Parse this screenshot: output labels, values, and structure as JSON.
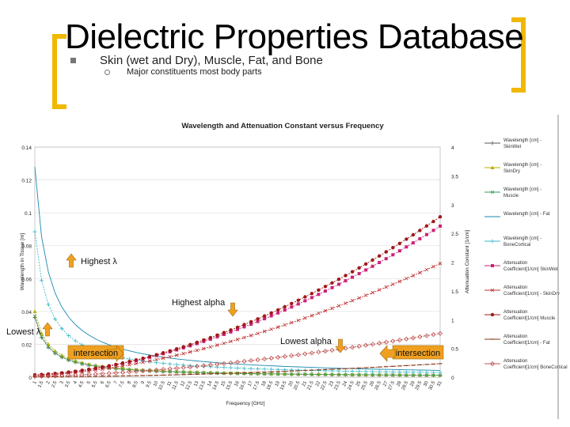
{
  "slide": {
    "title": "Dielectric Properties Database",
    "bullet": "Skin (wet and Dry), Muscle, Fat, and Bone",
    "sub_bullet": "Major constituents most body parts",
    "accent_color": "#f0b800"
  },
  "chart_data": {
    "type": "line",
    "title": "Wavelength and Attenuation Constant versus Frequency",
    "xlabel": "Frequency [GHz]",
    "ylabel_left": "Wavelength in Tissue [m]",
    "ylabel_right": "Attenuation Constant [1/cm]",
    "x": [
      1,
      1.5,
      2,
      2.5,
      3,
      3.5,
      4,
      4.5,
      5,
      5.5,
      6,
      6.5,
      7,
      7.5,
      8,
      8.5,
      9,
      9.5,
      10,
      10.5,
      11,
      11.5,
      12,
      12.5,
      13,
      13.5,
      14,
      14.5,
      15,
      15.5,
      16,
      16.5,
      17,
      17.5,
      18,
      18.5,
      19,
      19.5,
      20,
      20.5,
      21,
      21.5,
      22,
      22.5,
      23,
      23.5,
      24,
      24.5,
      25,
      25.5,
      26,
      26.5,
      27,
      27.5,
      28,
      28.5,
      29,
      29.5,
      30,
      30.5,
      31
    ],
    "xlim": [
      1,
      31
    ],
    "ylim_left": [
      0,
      0.14
    ],
    "yticks_left": [
      "0",
      "0.02",
      "0.04",
      "0.06",
      "0.08",
      "0.1",
      "0.12",
      "0.14"
    ],
    "ylim_right": [
      0,
      4
    ],
    "yticks_right": [
      "0",
      "0.5",
      "1",
      "1.5",
      "2",
      "2.5",
      "3",
      "3.5",
      "4"
    ],
    "grid": true,
    "legend_position": "right",
    "series": [
      {
        "name": "Wavelength [cm] - SkinWet",
        "axis": "left",
        "color": "#555555",
        "marker": "+",
        "a": 0.0363,
        "p": 1,
        "b": 0
      },
      {
        "name": "Wavelength [cm] - SkinDry",
        "axis": "left",
        "color": "#b8b000",
        "marker": "triangle",
        "a": 0.04,
        "p": 1,
        "b": 0
      },
      {
        "name": "Wavelength [cm] - Muscle",
        "axis": "left",
        "color": "#3a9a5a",
        "marker": "x",
        "a": 0.037,
        "p": 1,
        "b": 0
      },
      {
        "name": "Wavelength [cm] - Fat",
        "axis": "left",
        "color": "#1a8ab0",
        "marker": "none",
        "a": 0.128,
        "p": 1,
        "b": 0
      },
      {
        "name": "Wavelength [cm] - BoneCortical",
        "axis": "left",
        "color": "#3ab8c8",
        "marker": "+",
        "a": 0.0885,
        "p": 1,
        "b": 0
      },
      {
        "name": "Attenuation Coefficient[1/cm] SkinWet",
        "axis": "right",
        "color": "#cc2277",
        "marker": "square",
        "a": 0.00575,
        "p": 1.78,
        "b": 0.03
      },
      {
        "name": "Attenuation Coefficient[1/cm] - SkinDry",
        "axis": "right",
        "color": "#c03030",
        "marker": "x",
        "a": 0.0057,
        "p": 1.7,
        "b": 0.02
      },
      {
        "name": "Attenuation Coefficient[1/cm] Muscle",
        "axis": "right",
        "color": "#a01818",
        "marker": "circle",
        "a": 0.0055,
        "p": 1.81,
        "b": 0.035
      },
      {
        "name": "Attenuation Coefficient[1/cm] - Fat",
        "axis": "right",
        "color": "#8a3a1a",
        "marker": "dash",
        "a": 0.0004,
        "p": 1.85,
        "b": 0.005
      },
      {
        "name": "Attenuation Coefficient[1/cm] BoneCortical",
        "axis": "right",
        "color": "#c05050",
        "marker": "diamond",
        "a": 0.0026,
        "p": 1.65,
        "b": 0.01
      }
    ],
    "annotations": [
      {
        "text": "Highest λ",
        "pointer": "up"
      },
      {
        "text": "Highest alpha",
        "pointer": "down"
      },
      {
        "text": "Lowest λ",
        "pointer": "up"
      },
      {
        "text": "Lowest alpha",
        "pointer": "down"
      },
      {
        "text": "intersection",
        "pointer": "left"
      },
      {
        "text": "intersection",
        "pointer": "right"
      }
    ],
    "annotation_color": "#f0a020"
  }
}
